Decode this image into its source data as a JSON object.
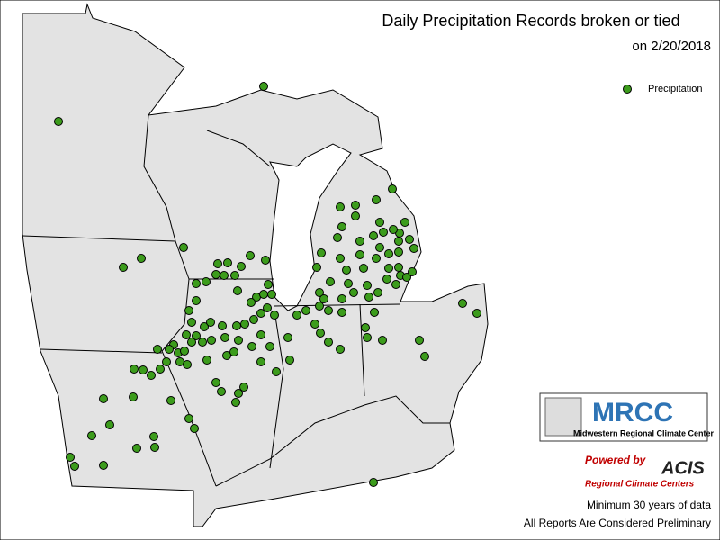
{
  "header": {
    "title": "Daily Precipitation Records broken or tied",
    "subtitle": "on 2/20/2018"
  },
  "legend": {
    "label": "Precipitation"
  },
  "logo": {
    "name": "MRCC",
    "full_name": "Midwestern Regional Climate Center"
  },
  "powered": {
    "by": "Powered by",
    "acis": "ACIS",
    "rcc": "Regional Climate Centers"
  },
  "footer": {
    "note1": "Minimum 30 years of data",
    "note2": "All Reports Are Considered Preliminary"
  }
}
